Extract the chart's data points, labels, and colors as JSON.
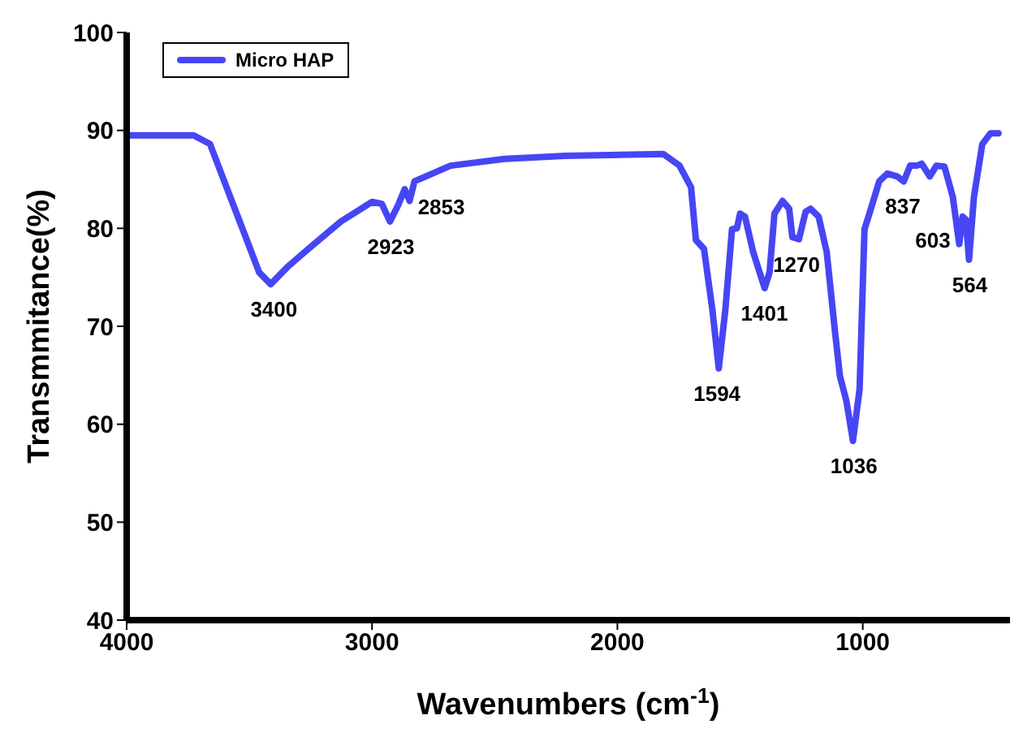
{
  "chart_data": {
    "type": "line",
    "xlabel": "Wavenumbers (cm$^{-1}$)",
    "ylabel": "Transmmitance(%)",
    "xlim": [
      4000,
      400
    ],
    "xticks": [
      4000,
      3000,
      2000,
      1000
    ],
    "ylim": [
      40,
      100
    ],
    "yticks": [
      40,
      50,
      60,
      70,
      80,
      90,
      100
    ],
    "grid": false,
    "legend": "top left",
    "marker": "none",
    "line_style": "solid",
    "series": [
      {
        "name": "Micro HAP",
        "color": "#4646f5",
        "x": [
          3993,
          3727,
          3660,
          3593,
          3527,
          3460,
          3413,
          3347,
          3260,
          3127,
          3000,
          2960,
          2927,
          2893,
          2867,
          2847,
          2827,
          2680,
          2460,
          2213,
          1813,
          1747,
          1700,
          1680,
          1647,
          1613,
          1587,
          1560,
          1533,
          1513,
          1500,
          1480,
          1447,
          1400,
          1380,
          1360,
          1327,
          1300,
          1287,
          1260,
          1233,
          1213,
          1180,
          1147,
          1113,
          1093,
          1067,
          1040,
          1013,
          993,
          967,
          933,
          900,
          860,
          833,
          807,
          780,
          760,
          727,
          700,
          667,
          633,
          607,
          593,
          580,
          567,
          547,
          513,
          480,
          447
        ],
        "values": [
          89.5,
          89.5,
          88.6,
          84.2,
          79.9,
          75.5,
          74.3,
          76,
          77.9,
          80.7,
          82.7,
          82.5,
          80.7,
          82.4,
          84,
          82.8,
          84.8,
          86.4,
          87.1,
          87.4,
          87.6,
          86.4,
          84.2,
          78.8,
          77.9,
          71.7,
          65.7,
          71.7,
          79.9,
          80,
          81.5,
          81.2,
          77.6,
          73.9,
          75.5,
          81.5,
          82.8,
          82,
          79.1,
          78.9,
          81.7,
          82,
          81.2,
          77.6,
          69.4,
          64.9,
          62.4,
          58.3,
          63.6,
          79.9,
          82,
          84.8,
          85.6,
          85.3,
          84.8,
          86.4,
          86.4,
          86.6,
          85.3,
          86.4,
          86.3,
          83.2,
          78.4,
          81.2,
          80.9,
          76.8,
          83.2,
          88.6,
          89.7,
          89.7
        ]
      }
    ],
    "annotations": [
      {
        "text": "3400",
        "x": 3400,
        "y": 74.3
      },
      {
        "text": "2923",
        "x": 2923,
        "y": 80.7
      },
      {
        "text": "2853",
        "x": 2853,
        "y": 82.8
      },
      {
        "text": "1594",
        "x": 1594,
        "y": 65.7
      },
      {
        "text": "1401",
        "x": 1401,
        "y": 73.9
      },
      {
        "text": "1270",
        "x": 1270,
        "y": 78.9
      },
      {
        "text": "1036",
        "x": 1036,
        "y": 58.3
      },
      {
        "text": "837",
        "x": 837,
        "y": 84.8
      },
      {
        "text": "603",
        "x": 603,
        "y": 78.4
      },
      {
        "text": "564",
        "x": 564,
        "y": 76.8
      }
    ]
  }
}
